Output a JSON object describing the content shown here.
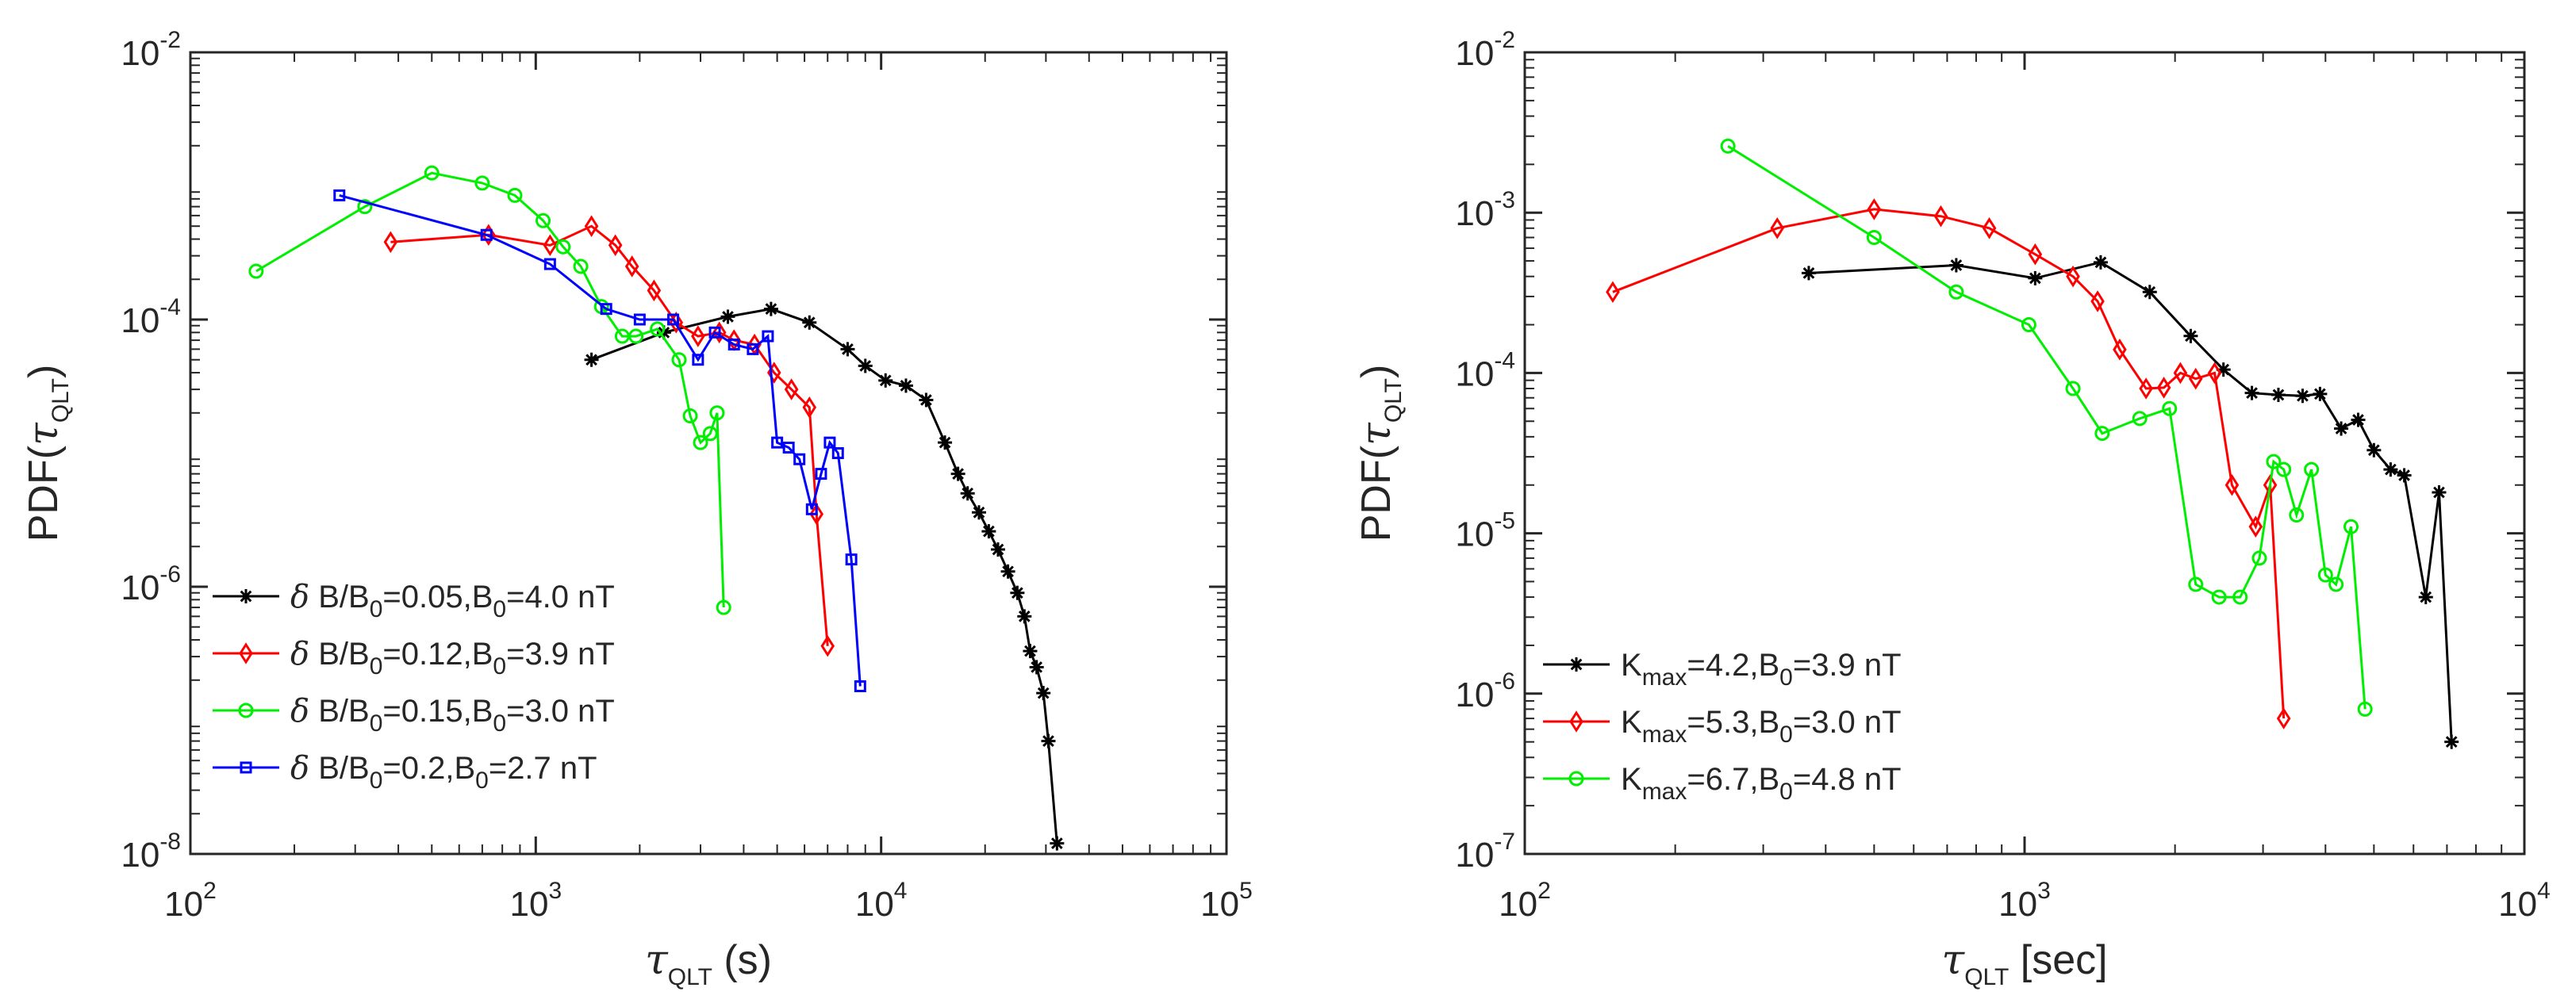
{
  "chart_data": [
    {
      "type": "line",
      "xscale": "log",
      "yscale": "log",
      "xlim": [
        100,
        100000
      ],
      "ylim": [
        1e-08,
        0.01
      ],
      "xticks": [
        {
          "base": "10",
          "exp": "2"
        },
        {
          "base": "10",
          "exp": "3"
        },
        {
          "base": "10",
          "exp": "4"
        },
        {
          "base": "10",
          "exp": "5"
        }
      ],
      "yticks": [
        {
          "base": "10",
          "exp": "-8"
        },
        {
          "base": "10",
          "exp": "-6"
        },
        {
          "base": "10",
          "exp": "-4"
        },
        {
          "base": "10",
          "exp": "-2"
        }
      ],
      "xlabel": {
        "main": "τ",
        "sub": "QLT",
        "unit": " (s)"
      },
      "ylabel": {
        "pre": "PDF(",
        "main": "τ",
        "sub": "QLT",
        "post": ")"
      },
      "legend_location": "bottom-left",
      "series": [
        {
          "name": "δ B/B0=0.05,B0=4.0 nT",
          "legend": {
            "p1": "δ B/B",
            "s1": "0",
            "p2": "=0.05,B",
            "s2": "0",
            "p3": "=4.0 nT"
          },
          "color": "#000000",
          "marker": "asterisk",
          "x": [
            1450,
            2350,
            3600,
            4800,
            6200,
            8000,
            9000,
            10300,
            11800,
            13500,
            15300,
            16700,
            17800,
            19200,
            20500,
            21800,
            23300,
            24800,
            26000,
            27000,
            28200,
            29500,
            30500,
            32300
          ],
          "y": [
            5e-05,
            8e-05,
            0.000105,
            0.00012,
            9.5e-05,
            6e-05,
            4.5e-05,
            3.5e-05,
            3.2e-05,
            2.5e-05,
            1.2e-05,
            7e-06,
            5e-06,
            3.6e-06,
            2.6e-06,
            1.9e-06,
            1.3e-06,
            9e-07,
            6e-07,
            3.3e-07,
            2.5e-07,
            1.6e-07,
            7e-08,
            1.2e-08
          ]
        },
        {
          "name": "δ B/B0=0.12,B0=3.9 nT",
          "legend": {
            "p1": "δ B/B",
            "s1": "0",
            "p2": "=0.12,B",
            "s2": "0",
            "p3": "=3.9 nT"
          },
          "color": "#ff0000",
          "marker": "diamond",
          "x": [
            380,
            730,
            1100,
            1450,
            1700,
            1900,
            2200,
            2550,
            2950,
            3400,
            3750,
            4300,
            4900,
            5500,
            6200,
            6500,
            7000
          ],
          "y": [
            0.00038,
            0.00043,
            0.00036,
            0.0005,
            0.00036,
            0.00025,
            0.000165,
            9.5e-05,
            7.5e-05,
            8e-05,
            7e-05,
            6.5e-05,
            4e-05,
            3e-05,
            2.2e-05,
            3.5e-06,
            3.6e-07
          ]
        },
        {
          "name": "δ B/B0=0.15,B0=3.0 nT",
          "legend": {
            "p1": "δ B/B",
            "s1": "0",
            "p2": "=0.15,B",
            "s2": "0",
            "p3": "=3.0 nT"
          },
          "color": "#00ee00",
          "marker": "circle",
          "x": [
            155,
            320,
            500,
            700,
            870,
            1050,
            1200,
            1350,
            1550,
            1780,
            1950,
            2250,
            2600,
            2800,
            3000,
            3200,
            3350,
            3500
          ],
          "y": [
            0.00023,
            0.0007,
            0.00125,
            0.00105,
            0.00085,
            0.00055,
            0.00035,
            0.00025,
            0.000125,
            7.5e-05,
            7.5e-05,
            8.5e-05,
            5e-05,
            1.9e-05,
            1.2e-05,
            1.4e-05,
            2e-05,
            7e-07
          ]
        },
        {
          "name": "δ B/B0=0.2,B0=2.7 nT",
          "legend": {
            "p1": "δ B/B",
            "s1": "0",
            "p2": "=0.2,B",
            "s2": "0",
            "p3": "=2.7 nT"
          },
          "color": "#0000ff",
          "marker": "square",
          "x": [
            270,
            720,
            1100,
            1600,
            2000,
            2500,
            2950,
            3300,
            3750,
            4250,
            4700,
            5000,
            5400,
            5800,
            6300,
            6700,
            7100,
            7500,
            8200,
            8700
          ],
          "y": [
            0.00085,
            0.00043,
            0.00026,
            0.00012,
            0.0001,
            0.0001,
            5e-05,
            8e-05,
            6.5e-05,
            6e-05,
            7.5e-05,
            1.2e-05,
            1.1e-05,
            9e-06,
            3.8e-06,
            7e-06,
            1.2e-05,
            1e-05,
            1.6e-06,
            1.8e-07
          ]
        }
      ]
    },
    {
      "type": "line",
      "xscale": "log",
      "yscale": "log",
      "xlim": [
        100,
        10000
      ],
      "ylim": [
        1e-07,
        0.01
      ],
      "xticks": [
        {
          "base": "10",
          "exp": "2"
        },
        {
          "base": "10",
          "exp": "3"
        },
        {
          "base": "10",
          "exp": "4"
        }
      ],
      "yticks": [
        {
          "base": "10",
          "exp": "-7"
        },
        {
          "base": "10",
          "exp": "-6"
        },
        {
          "base": "10",
          "exp": "-5"
        },
        {
          "base": "10",
          "exp": "-4"
        },
        {
          "base": "10",
          "exp": "-3"
        },
        {
          "base": "10",
          "exp": "-2"
        }
      ],
      "xlabel": {
        "main": "τ",
        "sub": "QLT",
        "unit": " [sec]"
      },
      "ylabel": {
        "pre": "PDF(",
        "main": "τ",
        "sub": "QLT",
        "post": ")"
      },
      "legend_location": "bottom-left",
      "series": [
        {
          "name": "Kmax=4.2,B0=3.9 nT",
          "legend": {
            "p1": "K",
            "s1": "max",
            "p2": "=4.2,B",
            "s2": "0",
            "p3": "=3.9 nT"
          },
          "color": "#000000",
          "marker": "asterisk",
          "x": [
            370,
            730,
            1050,
            1420,
            1780,
            2150,
            2500,
            2850,
            3220,
            3600,
            3900,
            4300,
            4650,
            5000,
            5400,
            5750,
            6350,
            6750,
            7150
          ],
          "y": [
            0.00042,
            0.00047,
            0.00039,
            0.00049,
            0.00032,
            0.00017,
            0.000105,
            7.5e-05,
            7.3e-05,
            7.2e-05,
            7.4e-05,
            4.5e-05,
            5.1e-05,
            3.3e-05,
            2.5e-05,
            2.3e-05,
            4e-06,
            1.8e-05,
            5e-07
          ]
        },
        {
          "name": "Kmax=5.3,B0=3.0 nT",
          "legend": {
            "p1": "K",
            "s1": "max",
            "p2": "=5.3,B",
            "s2": "0",
            "p3": "=3.0 nT"
          },
          "color": "#ff0000",
          "marker": "diamond",
          "x": [
            150,
            320,
            500,
            680,
            850,
            1050,
            1250,
            1400,
            1550,
            1750,
            1900,
            2050,
            2200,
            2400,
            2600,
            2900,
            3100,
            3300
          ],
          "y": [
            0.00032,
            0.0008,
            0.00105,
            0.00095,
            0.0008,
            0.00055,
            0.0004,
            0.00028,
            0.00014,
            8e-05,
            8.1e-05,
            0.0001,
            9.2e-05,
            0.0001,
            2e-05,
            1.1e-05,
            2e-05,
            7e-07
          ]
        },
        {
          "name": "Kmax=6.7,B0=4.8 nT",
          "legend": {
            "p1": "K",
            "s1": "max",
            "p2": "=6.7,B",
            "s2": "0",
            "p3": "=4.8 nT"
          },
          "color": "#00ee00",
          "marker": "circle",
          "x": [
            255,
            500,
            730,
            1020,
            1250,
            1430,
            1700,
            1950,
            2200,
            2450,
            2700,
            2950,
            3150,
            3300,
            3500,
            3750,
            4000,
            4200,
            4500,
            4800
          ],
          "y": [
            0.0026,
            0.0007,
            0.00032,
            0.0002,
            8e-05,
            4.2e-05,
            5.2e-05,
            6e-05,
            4.8e-06,
            4e-06,
            4e-06,
            7e-06,
            2.8e-05,
            2.5e-05,
            1.3e-05,
            2.5e-05,
            5.5e-06,
            4.8e-06,
            1.1e-05,
            8e-07
          ]
        }
      ]
    }
  ]
}
